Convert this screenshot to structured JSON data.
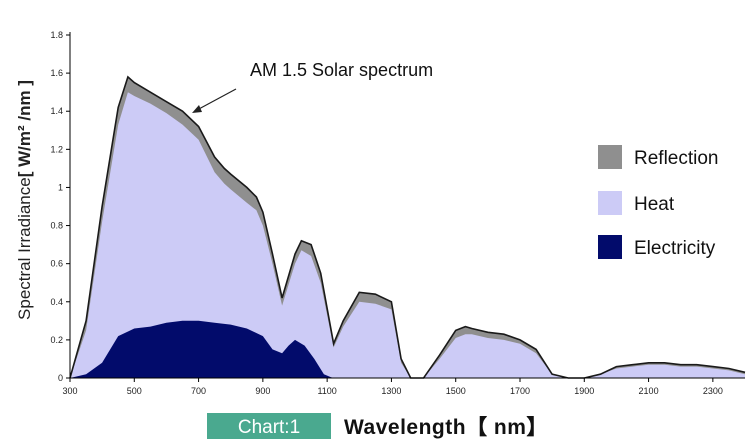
{
  "chart_data": {
    "type": "area",
    "title": "",
    "caption": "Chart:1",
    "ylabel": "Spectral Irradiance",
    "ylabel_unit": "[ W/m² /nm ]",
    "xlabel": "Wavelength【 nm】",
    "annotation": "AM 1.5 Solar spectrum",
    "xlim": [
      300,
      2400
    ],
    "ylim": [
      0,
      1.8
    ],
    "x_ticks": [
      300,
      500,
      700,
      900,
      1100,
      1300,
      1500,
      1700,
      1900,
      2100,
      2300
    ],
    "y_ticks": [
      0,
      0.2,
      0.4,
      0.6,
      0.8,
      1,
      1.2,
      1.4,
      1.6,
      1.8
    ],
    "y_tick_labels": [
      "0",
      "0.2",
      "0.4",
      "0.6",
      "0.8",
      "1",
      "1.2",
      "1.4",
      "1.6",
      "1.8"
    ],
    "legend_position": "right",
    "grid": false,
    "series": [
      {
        "name": "Reflection",
        "color": "#8f8f8f",
        "x": [
          300,
          350,
          400,
          450,
          480,
          500,
          550,
          600,
          650,
          700,
          750,
          780,
          800,
          850,
          880,
          900,
          930,
          960,
          1000,
          1020,
          1050,
          1080,
          1120,
          1150,
          1200,
          1250,
          1300,
          1330,
          1360,
          1400,
          1450,
          1500,
          1530,
          1550,
          1600,
          1650,
          1700,
          1750,
          1800,
          1850,
          1900,
          1950,
          2000,
          2050,
          2100,
          2150,
          2200,
          2250,
          2300,
          2350,
          2400
        ],
        "values": [
          0,
          0.3,
          0.9,
          1.42,
          1.58,
          1.55,
          1.5,
          1.45,
          1.4,
          1.32,
          1.16,
          1.1,
          1.07,
          1.0,
          0.95,
          0.87,
          0.65,
          0.42,
          0.65,
          0.72,
          0.7,
          0.55,
          0.18,
          0.3,
          0.45,
          0.44,
          0.4,
          0.1,
          0,
          0,
          0.12,
          0.25,
          0.27,
          0.26,
          0.24,
          0.23,
          0.2,
          0.15,
          0.02,
          0,
          0,
          0.02,
          0.06,
          0.07,
          0.08,
          0.08,
          0.07,
          0.07,
          0.06,
          0.05,
          0.03
        ]
      },
      {
        "name": "Heat",
        "color": "#cccbf6",
        "x": [
          300,
          350,
          400,
          450,
          480,
          500,
          550,
          600,
          650,
          700,
          750,
          780,
          800,
          850,
          880,
          900,
          930,
          960,
          1000,
          1020,
          1050,
          1080,
          1120,
          1150,
          1200,
          1250,
          1300,
          1330,
          1360,
          1400,
          1450,
          1500,
          1530,
          1550,
          1600,
          1650,
          1700,
          1750,
          1800,
          1850,
          1900,
          1950,
          2000,
          2050,
          2100,
          2150,
          2200,
          2250,
          2300,
          2350,
          2400
        ],
        "values": [
          0,
          0.25,
          0.82,
          1.33,
          1.5,
          1.48,
          1.44,
          1.39,
          1.33,
          1.25,
          1.08,
          1.02,
          0.99,
          0.92,
          0.88,
          0.8,
          0.6,
          0.38,
          0.6,
          0.67,
          0.64,
          0.5,
          0.16,
          0.27,
          0.4,
          0.39,
          0.36,
          0.08,
          0,
          0,
          0.1,
          0.21,
          0.23,
          0.23,
          0.21,
          0.2,
          0.18,
          0.13,
          0.02,
          0,
          0,
          0.02,
          0.05,
          0.06,
          0.07,
          0.07,
          0.06,
          0.06,
          0.05,
          0.04,
          0.02
        ]
      },
      {
        "name": "Electricity",
        "color": "#020b6b",
        "x": [
          300,
          350,
          400,
          450,
          500,
          550,
          600,
          650,
          700,
          750,
          800,
          850,
          900,
          930,
          960,
          980,
          1000,
          1030,
          1060,
          1090,
          1110,
          1120
        ],
        "values": [
          0,
          0.02,
          0.08,
          0.22,
          0.26,
          0.27,
          0.29,
          0.3,
          0.3,
          0.29,
          0.28,
          0.26,
          0.22,
          0.15,
          0.13,
          0.17,
          0.2,
          0.17,
          0.1,
          0.02,
          0.005,
          0
        ]
      }
    ]
  }
}
